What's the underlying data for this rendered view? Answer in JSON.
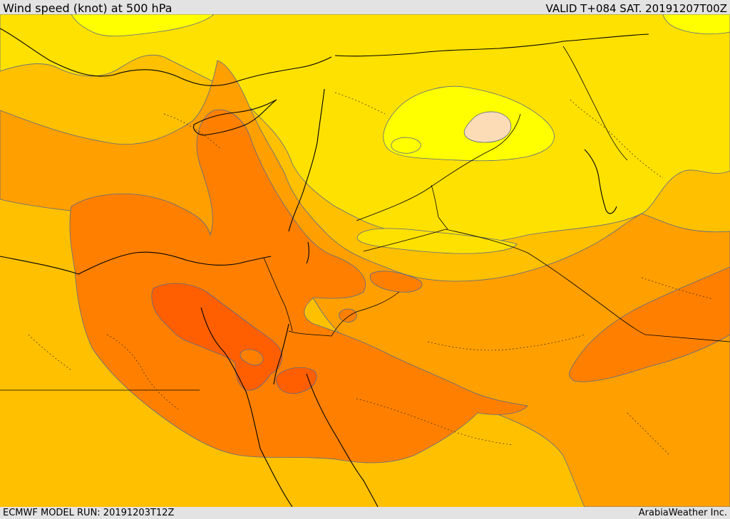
{
  "header": {
    "title": "Wind speed (knot) at 500 hPa",
    "valid": "VALID T+084 SAT. 20191207T00Z"
  },
  "footer": {
    "model_run": "ECMWF MODEL RUN: 20191203T12Z",
    "credit": "ArabiaWeather Inc."
  },
  "colors": {
    "bg": "#e3e3e3",
    "band_lowest": "#ffff00",
    "band_low": "#ffe100",
    "band_mid": "#ffc000",
    "band_high": "#ff9f00",
    "band_higher": "#ff8000",
    "band_highest": "#ff5f00",
    "calm_patch": "#fbdcb6",
    "contour": "#5b6a8a",
    "coastline": "#000000"
  }
}
